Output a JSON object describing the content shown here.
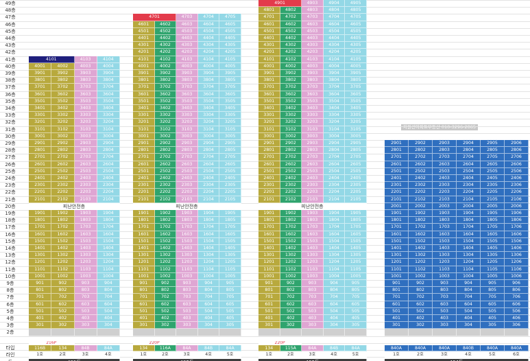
{
  "colors": {
    "olive": "#b8a93d",
    "pink": "#dfa6d3",
    "cyan": "#93d8e6",
    "green": "#2fa46e",
    "red": "#e33b4b",
    "navy": "#1f1f7d",
    "blue": "#2f6fbf",
    "hatch": "#cfcfcf",
    "unitText": "#ffffff",
    "darkText": "#333333",
    "dongBar": "#3c3c3c",
    "typeRed": "#e33b4b"
  },
  "floorLabels": [
    "49층",
    "48층",
    "47층",
    "46층",
    "45층",
    "44층",
    "43층",
    "42층",
    "41층",
    "40층",
    "39층",
    "38층",
    "37층",
    "36층",
    "35층",
    "34층",
    "33층",
    "32층",
    "31층",
    "30층",
    "29층",
    "28층",
    "27층",
    "26층",
    "25층",
    "24층",
    "23층",
    "22층",
    "21층",
    "20층",
    "19층",
    "18층",
    "17층",
    "16층",
    "15층",
    "14층",
    "13층",
    "12층",
    "11층",
    "10층",
    "9층",
    "8층",
    "7층",
    "6층",
    "5층",
    "4층",
    "3층",
    "2층"
  ],
  "rowLabels": {
    "type": "타입",
    "line": "라인",
    "dong": "동"
  },
  "contactNote": "지원선아파트부동산 010-3296-2065",
  "buildings": [
    {
      "name": "401동",
      "lines": [
        "1호",
        "2호",
        "3호",
        "4호"
      ],
      "types": [
        "116B",
        "134",
        "84B",
        "84A"
      ],
      "typeBanner": "216P",
      "topFloor": 41,
      "refugeFloor": 20,
      "refugeLabel": "피난안전층",
      "penthouseCols": [
        0,
        1
      ],
      "penthouseColor": "navy",
      "colColors": [
        "olive",
        "olive",
        "pink",
        "cyan"
      ]
    },
    {
      "name": "402동",
      "lines": [
        "1호",
        "2호",
        "3호",
        "4호",
        "5호"
      ],
      "types": [
        "134",
        "116A",
        "84A",
        "84B",
        "84A"
      ],
      "typeBanner": "220P",
      "topFloor": 47,
      "refugeFloor": 20,
      "refugeLabel": "피난안전층",
      "penthouseCols": [
        0,
        1
      ],
      "penthouseColor": "red",
      "colColors": [
        "olive",
        "green",
        "pink",
        "cyan",
        "cyan"
      ]
    },
    {
      "name": "403동",
      "lines": [
        "1호",
        "2호",
        "3호",
        "4호",
        "5호"
      ],
      "types": [
        "134",
        "115A",
        "84A",
        "84B",
        "84A"
      ],
      "typeBanner": "220P",
      "topFloor": 49,
      "refugeFloor": 20,
      "refugeLabel": "피난안전층",
      "penthouseCols": [
        0,
        1
      ],
      "penthouseColor": "red",
      "colColors": [
        "olive",
        "green",
        "pink",
        "cyan",
        "cyan"
      ]
    },
    {
      "name": "404동",
      "lines": [
        "1호",
        "2호",
        "3호",
        "4호",
        "5호",
        "6호"
      ],
      "types": [
        "840A",
        "840A",
        "840A",
        "840B",
        "840A",
        "840A"
      ],
      "typeBanner": "",
      "topFloor": 29,
      "refugeFloor": 0,
      "refugeLabel": "",
      "penthouseCols": [],
      "penthouseColor": "blue",
      "colColors": [
        "blue",
        "blue",
        "blue",
        "blue",
        "blue",
        "blue"
      ]
    }
  ]
}
